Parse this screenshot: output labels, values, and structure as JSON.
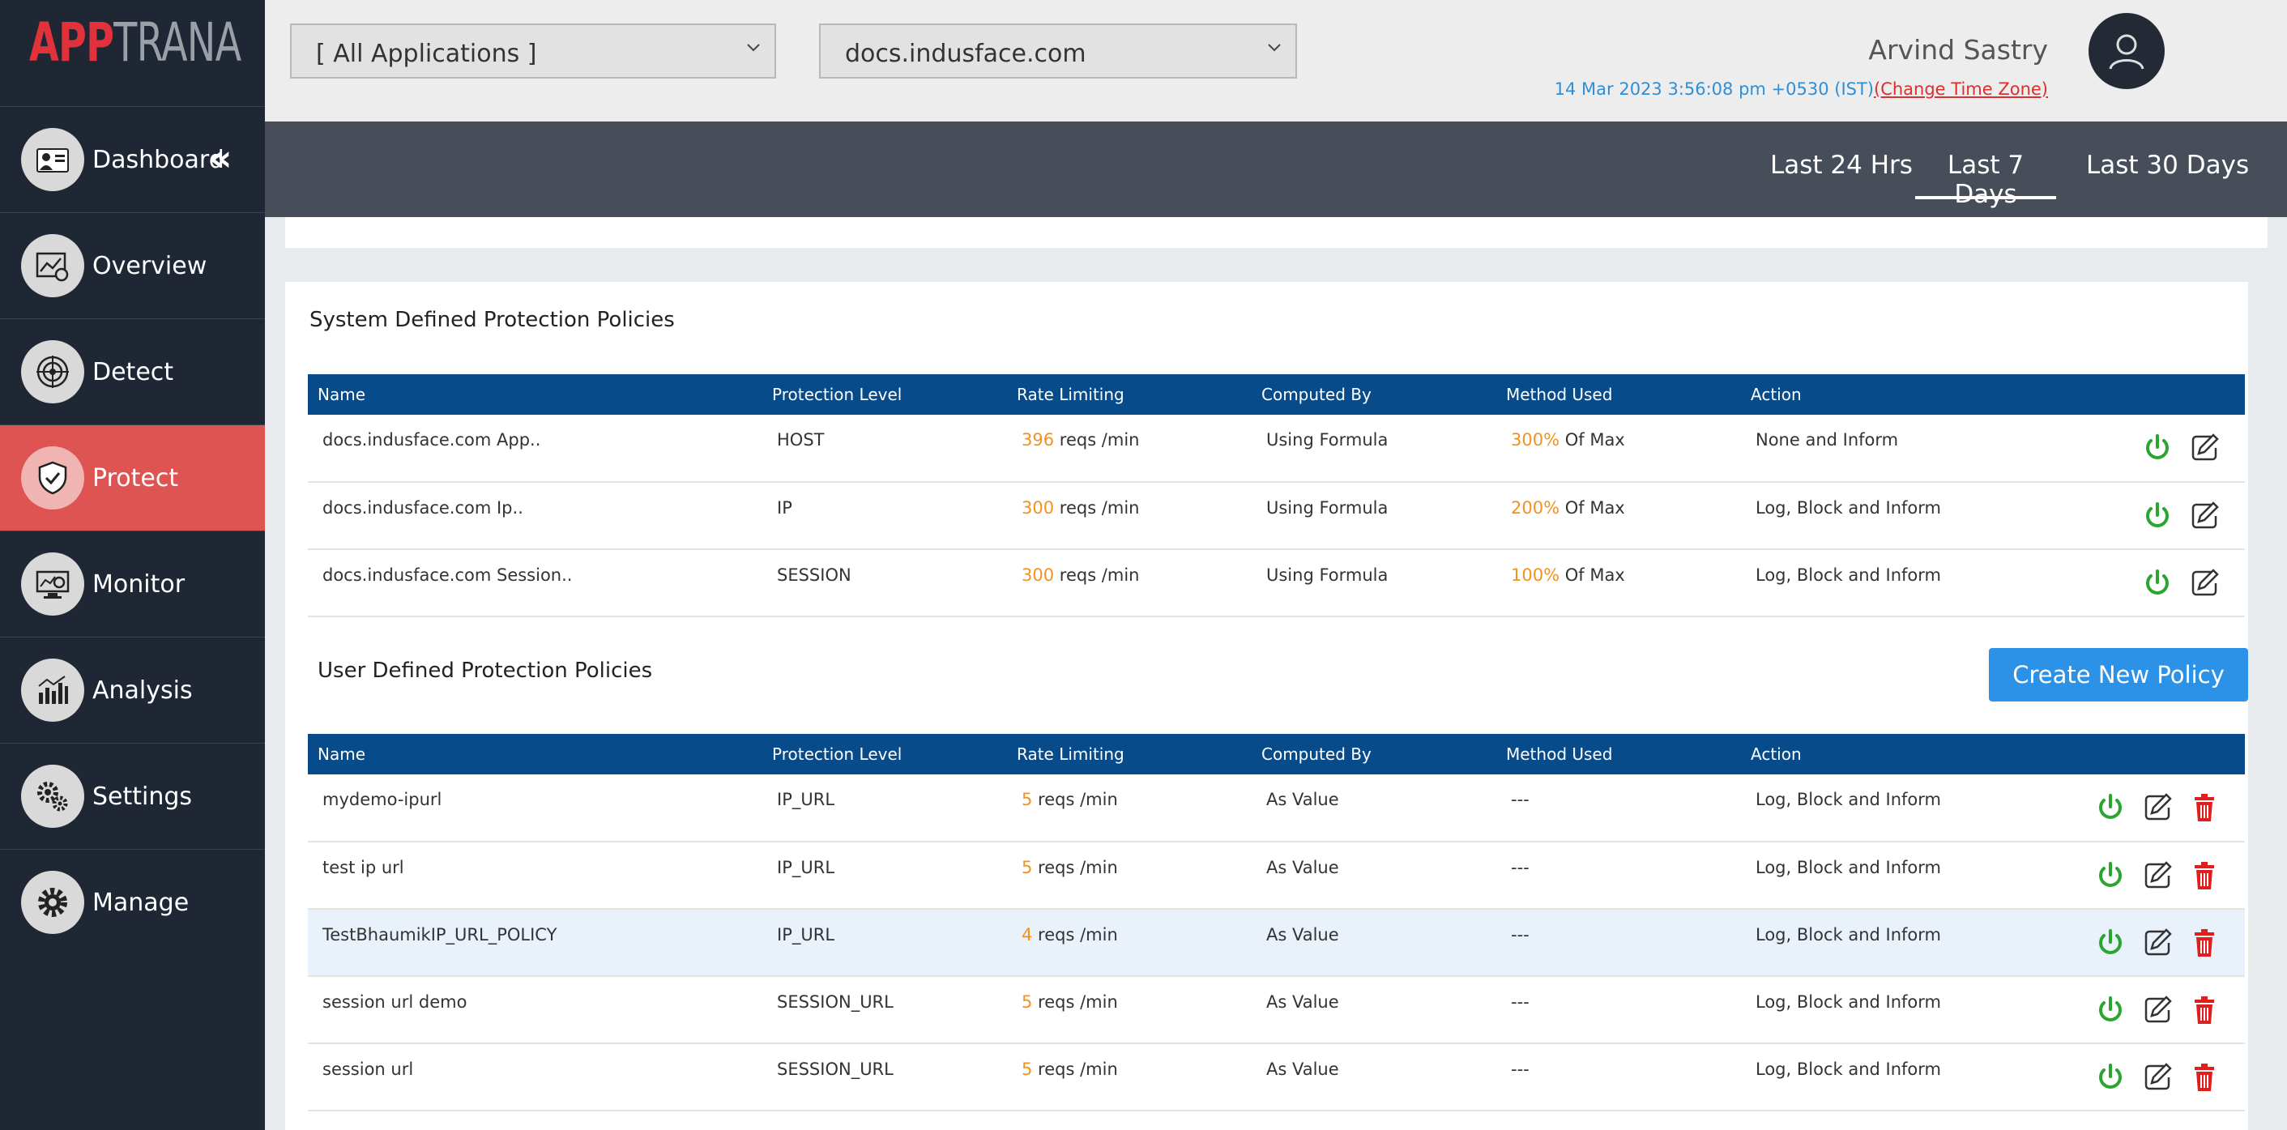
{
  "brand": {
    "app": "APP",
    "trana": "TRANA"
  },
  "sidebar": {
    "items": [
      {
        "label": "Dashboard",
        "icon": "dashboard-icon"
      },
      {
        "label": "Overview",
        "icon": "overview-icon"
      },
      {
        "label": "Detect",
        "icon": "radar-icon"
      },
      {
        "label": "Protect",
        "icon": "shield-icon"
      },
      {
        "label": "Monitor",
        "icon": "monitor-icon"
      },
      {
        "label": "Analysis",
        "icon": "bar-chart-icon"
      },
      {
        "label": "Settings",
        "icon": "gears-icon"
      },
      {
        "label": "Manage",
        "icon": "gear-icon"
      }
    ],
    "active": "Protect"
  },
  "header": {
    "app_select": "[ All Applications ]",
    "site_select": "docs.indusface.com",
    "user_name": "Arvind Sastry",
    "datetime": "14 Mar 2023 3:56:08 pm +0530 (IST)",
    "change_tz": "(Change Time Zone)"
  },
  "tabs": [
    {
      "label": "Last 24 Hrs"
    },
    {
      "label": "Last 7 Days"
    },
    {
      "label": "Last 30 Days"
    }
  ],
  "active_tab": "Last 7 Days",
  "columns": [
    "Name",
    "Protection Level",
    "Rate Limiting",
    "Computed By",
    "Method Used",
    "Action"
  ],
  "system": {
    "title": "System Defined Protection Policies",
    "rows": [
      {
        "name": "docs.indusface.com App..",
        "level": "HOST",
        "rate": "396",
        "rate_unit": " reqs /min",
        "computed": "Using Formula",
        "method_pct": "300%",
        "method_suffix": " Of Max",
        "action": "None and Inform"
      },
      {
        "name": "docs.indusface.com Ip..",
        "level": "IP",
        "rate": "300",
        "rate_unit": " reqs /min",
        "computed": "Using Formula",
        "method_pct": "200%",
        "method_suffix": " Of Max",
        "action": "Log, Block and Inform"
      },
      {
        "name": "docs.indusface.com Session..",
        "level": "SESSION",
        "rate": "300",
        "rate_unit": " reqs /min",
        "computed": "Using Formula",
        "method_pct": "100%",
        "method_suffix": " Of Max",
        "action": "Log, Block and Inform"
      }
    ]
  },
  "user": {
    "title": "User Defined Protection Policies",
    "create_label": "Create New Policy",
    "rows": [
      {
        "name": "mydemo-ipurl",
        "level": "IP_URL",
        "rate": "5",
        "rate_unit": " reqs /min",
        "computed": "As Value",
        "method": "---",
        "action": "Log, Block and Inform"
      },
      {
        "name": "test ip url",
        "level": "IP_URL",
        "rate": "5",
        "rate_unit": " reqs /min",
        "computed": "As Value",
        "method": "---",
        "action": "Log, Block and Inform"
      },
      {
        "name": "TestBhaumikIP_URL_POLICY",
        "level": "IP_URL",
        "rate": "4",
        "rate_unit": " reqs /min",
        "computed": "As Value",
        "method": "---",
        "action": "Log, Block and Inform"
      },
      {
        "name": "session url demo",
        "level": "SESSION_URL",
        "rate": "5",
        "rate_unit": " reqs /min",
        "computed": "As Value",
        "method": "---",
        "action": "Log, Block and Inform"
      },
      {
        "name": "session url",
        "level": "SESSION_URL",
        "rate": "5",
        "rate_unit": " reqs /min",
        "computed": "As Value",
        "method": "---",
        "action": "Log, Block and Inform"
      }
    ]
  },
  "colors": {
    "accent": "#2c92e8",
    "active_nav": "#de5452",
    "table_header": "#084b8a",
    "highlight": "#f4921e",
    "power": "#2aa52f",
    "delete": "#e01e1e"
  }
}
